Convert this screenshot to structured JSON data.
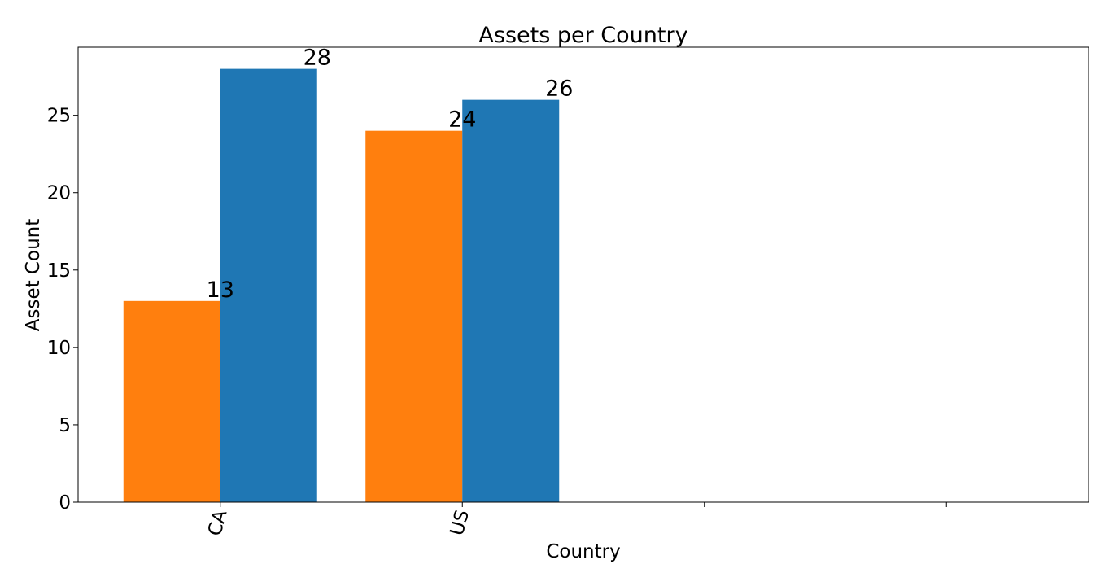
{
  "chart_data": {
    "type": "bar",
    "title": "Assets per Country",
    "xlabel": "Country",
    "ylabel": "Asset Count",
    "categories": [
      "CA",
      "US",
      "",
      ""
    ],
    "series": [
      {
        "color": "#ff7f0e",
        "values": [
          13,
          24,
          null,
          null
        ]
      },
      {
        "color": "#1f77b4",
        "values": [
          28,
          26,
          null,
          null
        ]
      }
    ],
    "yticks": [
      0,
      5,
      10,
      15,
      20,
      25
    ],
    "ylim": [
      0,
      29.4
    ],
    "grid": false,
    "legend": false
  }
}
